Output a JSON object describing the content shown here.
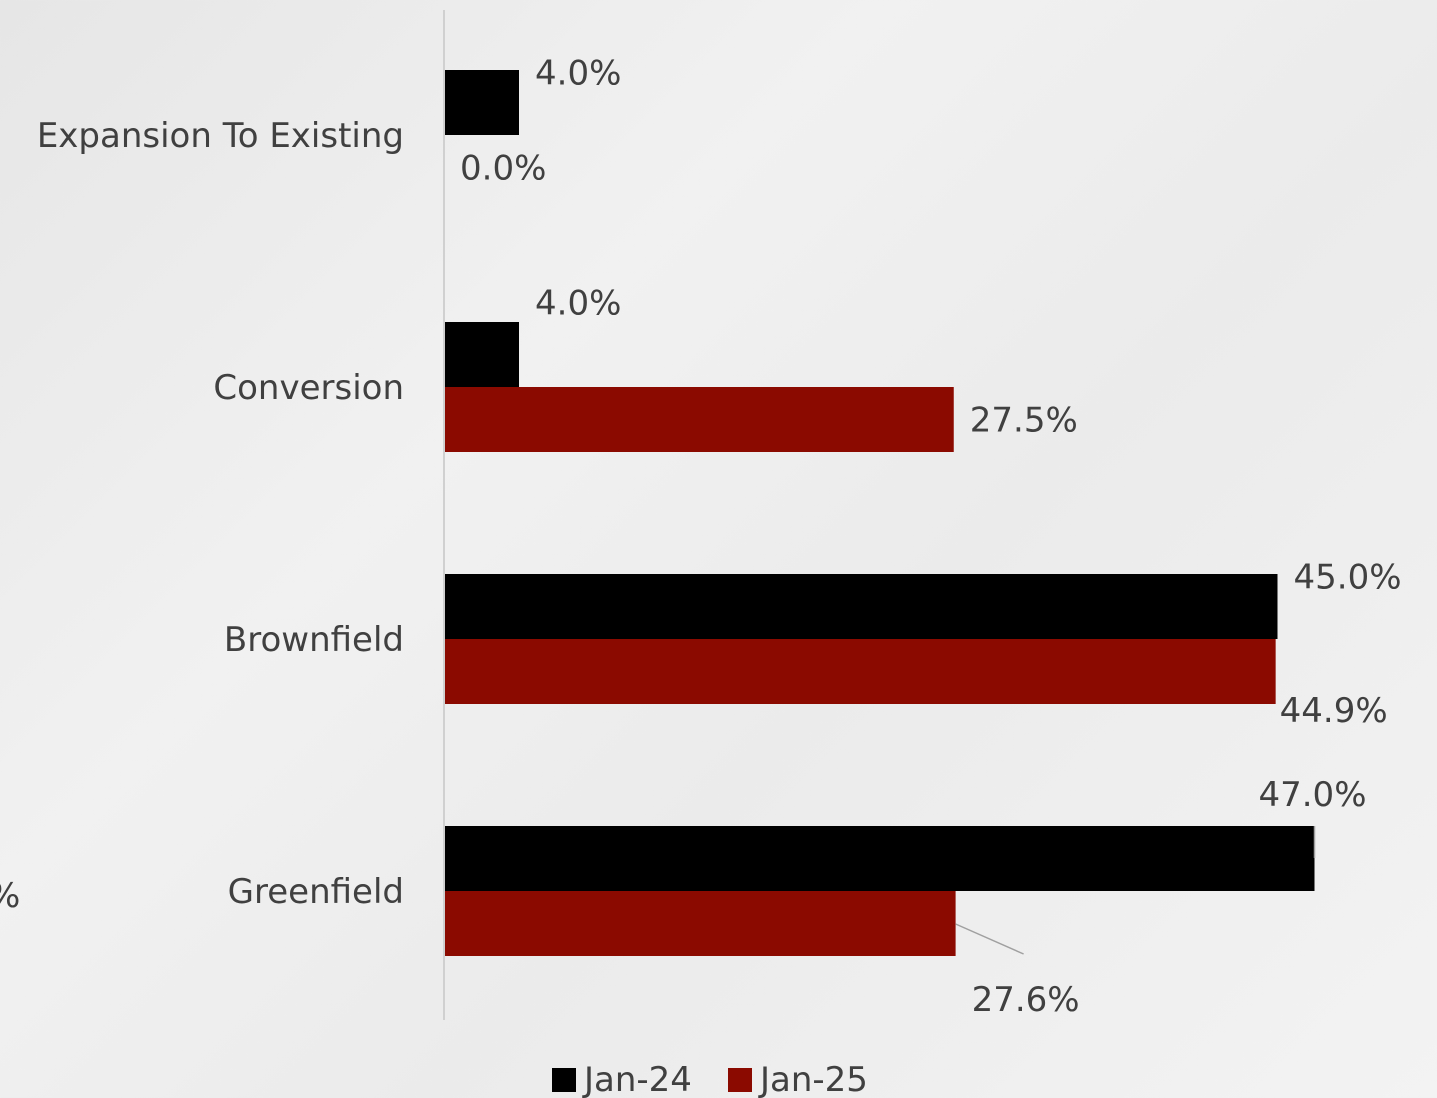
{
  "chart_data": {
    "type": "bar",
    "orientation": "horizontal",
    "categories": [
      "Expansion To Existing",
      "Conversion",
      "Brownfield",
      "Greenfield"
    ],
    "series": [
      {
        "name": "Jan-24",
        "color": "#000000",
        "values": [
          4.0,
          4.0,
          45.0,
          47.0
        ],
        "labels": [
          "4.0%",
          "4.0%",
          "45.0%",
          "47.0%"
        ]
      },
      {
        "name": "Jan-25",
        "color": "#8b0a00",
        "values": [
          0.0,
          27.5,
          44.9,
          27.6
        ],
        "labels": [
          "0.0%",
          "27.5%",
          "44.9%",
          "27.6%"
        ]
      }
    ],
    "title": "",
    "xlabel": "",
    "ylabel": "",
    "xlim": [
      0,
      50
    ],
    "grid": false,
    "legend": "bottom-center"
  },
  "edge_text": "%"
}
